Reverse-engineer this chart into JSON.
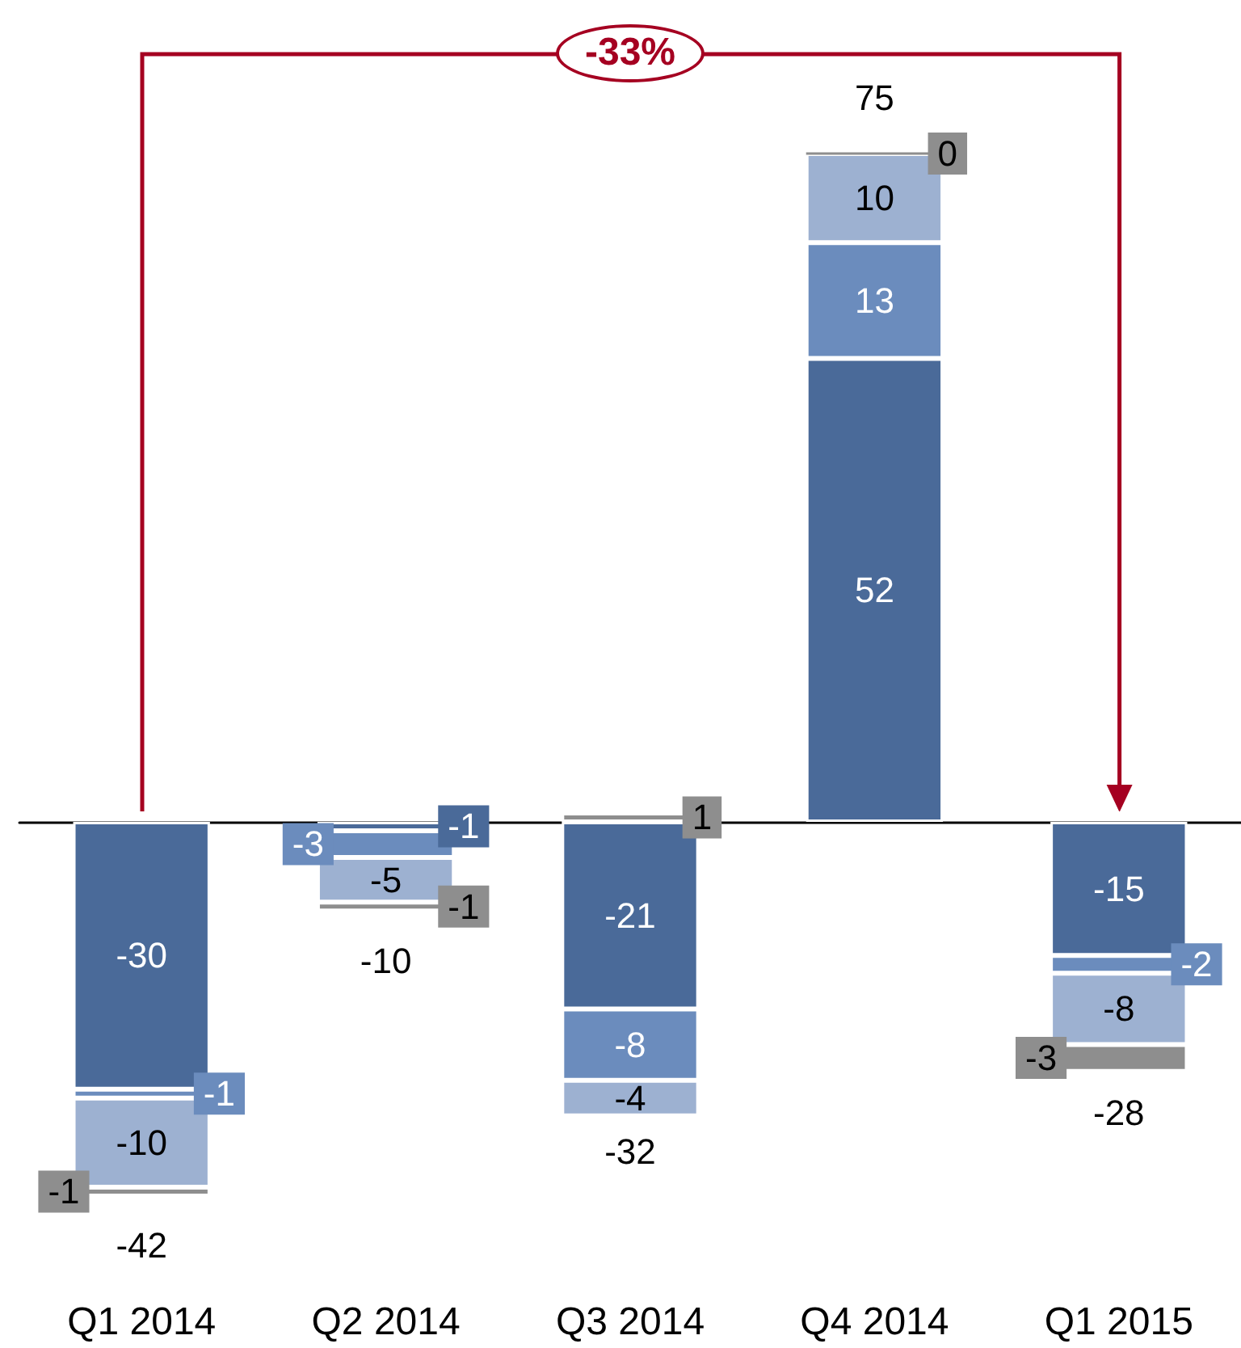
{
  "chart_data": {
    "type": "bar",
    "stacked": true,
    "categories": [
      "Q1 2014",
      "Q2 2014",
      "Q3 2014",
      "Q4 2014",
      "Q1 2015"
    ],
    "series": [
      {
        "color": "#4a6a99",
        "values": [
          -30,
          -1,
          -21,
          52,
          -15
        ]
      },
      {
        "color": "#6b8cbd",
        "values": [
          -1,
          -3,
          -8,
          13,
          -2
        ]
      },
      {
        "color": "#9db1d1",
        "values": [
          -10,
          -5,
          -4,
          10,
          -8
        ]
      },
      {
        "color": "#8e8e8e",
        "values": [
          -1,
          -1,
          1,
          0,
          -3
        ]
      }
    ],
    "data_labels": true,
    "totals": [
      "-42",
      "-10",
      "-32",
      "75",
      "-28"
    ],
    "annotations": [
      "-33%"
    ]
  }
}
